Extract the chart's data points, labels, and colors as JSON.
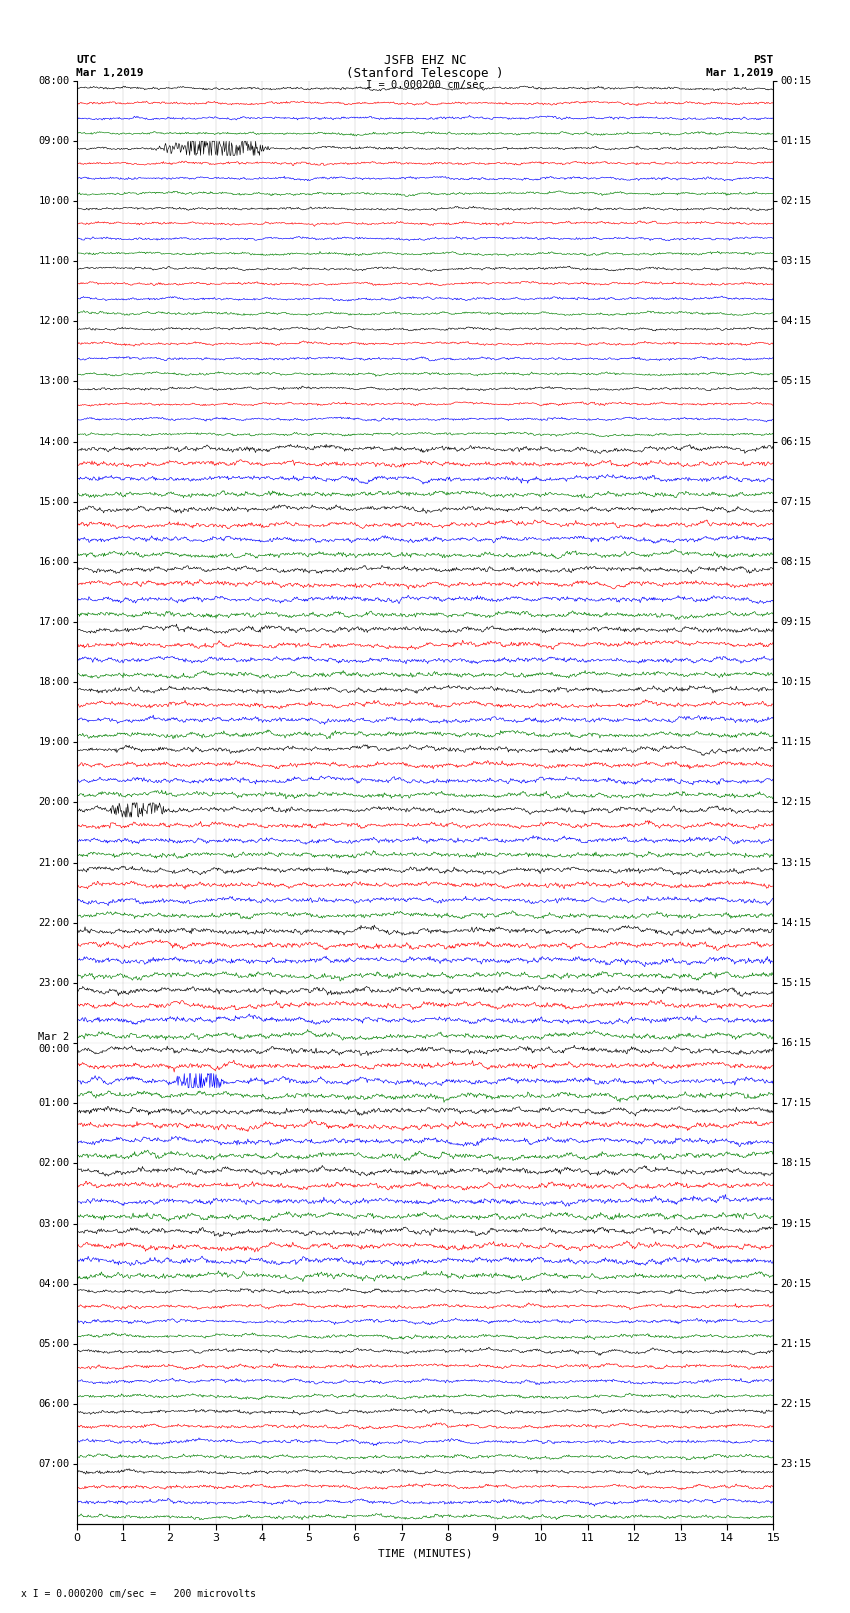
{
  "title_line1": "JSFB EHZ NC",
  "title_line2": "(Stanford Telescope )",
  "scale_label": "I = 0.000200 cm/sec",
  "left_label_top": "UTC",
  "left_label_date": "Mar 1,2019",
  "right_label_top": "PST",
  "right_label_date": "Mar 1,2019",
  "xlabel": "TIME (MINUTES)",
  "bottom_note": "x I = 0.000200 cm/sec =   200 microvolts",
  "xlim": [
    0,
    15
  ],
  "xticks": [
    0,
    1,
    2,
    3,
    4,
    5,
    6,
    7,
    8,
    9,
    10,
    11,
    12,
    13,
    14,
    15
  ],
  "utc_times": [
    "08:00",
    "09:00",
    "10:00",
    "11:00",
    "12:00",
    "13:00",
    "14:00",
    "15:00",
    "16:00",
    "17:00",
    "18:00",
    "19:00",
    "20:00",
    "21:00",
    "22:00",
    "23:00",
    "Mar 2\n00:00",
    "01:00",
    "02:00",
    "03:00",
    "04:00",
    "05:00",
    "06:00",
    "07:00"
  ],
  "pst_times": [
    "00:15",
    "01:15",
    "02:15",
    "03:15",
    "04:15",
    "05:15",
    "06:15",
    "07:15",
    "08:15",
    "09:15",
    "10:15",
    "11:15",
    "12:15",
    "13:15",
    "14:15",
    "15:15",
    "16:15",
    "17:15",
    "18:15",
    "19:15",
    "20:15",
    "21:15",
    "22:15",
    "23:15"
  ],
  "trace_colors": [
    "black",
    "red",
    "blue",
    "green"
  ],
  "n_hours": 24,
  "traces_per_hour": 4,
  "bg_color": "white",
  "noise_seed": 42,
  "fig_width": 8.5,
  "fig_height": 16.13
}
